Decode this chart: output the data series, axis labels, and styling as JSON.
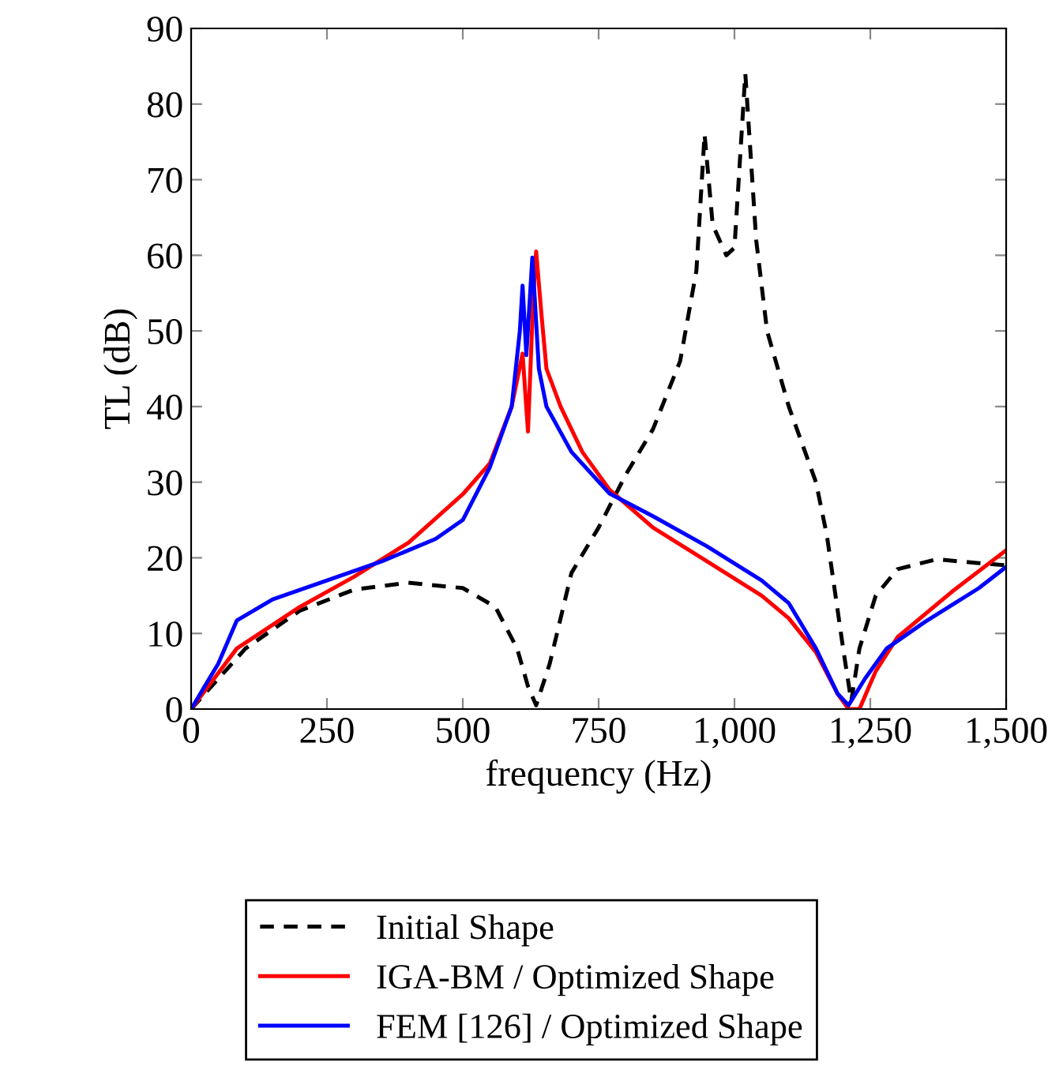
{
  "chart_data": {
    "type": "line",
    "xlabel": "frequency (Hz)",
    "ylabel": "TL (dB)",
    "xlim": [
      0,
      1500
    ],
    "ylim": [
      0,
      90
    ],
    "xticks": [
      0,
      250,
      500,
      750,
      {
        "value": 1000,
        "label": "1,000"
      },
      {
        "value": 1250,
        "label": "1,250"
      },
      {
        "value": 1500,
        "label": "1,500"
      }
    ],
    "yticks": [
      0,
      10,
      20,
      30,
      40,
      50,
      60,
      70,
      80,
      90
    ],
    "grid": false,
    "legend": "bottom",
    "marker": "none",
    "series": [
      {
        "name": "Initial Shape",
        "color": "#000000",
        "line_style": "dashed",
        "x": [
          0,
          100,
          200,
          300,
          400,
          500,
          560,
          600,
          620,
          635,
          660,
          700,
          750,
          800,
          850,
          900,
          930,
          945,
          960,
          985,
          1000,
          1020,
          1040,
          1060,
          1100,
          1150,
          1170,
          1200,
          1215,
          1230,
          1260,
          1300,
          1372,
          1450,
          1500
        ],
        "values": [
          0,
          8,
          13,
          15.8,
          16.7,
          16,
          13.5,
          8,
          3,
          0.5,
          6,
          18,
          24,
          31,
          37,
          46,
          58,
          76,
          64,
          60,
          61,
          84,
          62,
          50,
          40,
          30,
          23,
          8,
          1,
          8,
          15,
          18.5,
          19.8,
          19.3,
          19
        ]
      },
      {
        "name": "IGA-BM / Optimized Shape",
        "color": "#ff0000",
        "line_style": "solid",
        "x": [
          0,
          84,
          200,
          300,
          400,
          500,
          550,
          590,
          610,
          620,
          630,
          635,
          645,
          654,
          680,
          720,
          770,
          850,
          950,
          1050,
          1100,
          1150,
          1190,
          1210,
          1230,
          1260,
          1300,
          1400,
          1500
        ],
        "values": [
          0,
          8,
          13.5,
          17.5,
          22,
          28.4,
          32.5,
          40,
          47,
          36.7,
          55,
          60.5,
          52,
          45,
          40,
          34,
          29,
          24,
          19.5,
          15,
          12,
          7.5,
          2,
          0,
          0,
          5,
          9.5,
          15.5,
          21
        ]
      },
      {
        "name": "FEM [126] / Optimized Shape",
        "color": "#0000ff",
        "line_style": "solid",
        "x": [
          0,
          50,
          84,
          150,
          250,
          350,
          400,
          450,
          500,
          550,
          590,
          605,
          610,
          617,
          628,
          640,
          654,
          700,
          770,
          850,
          950,
          1050,
          1100,
          1150,
          1190,
          1210,
          1240,
          1280,
          1350,
          1450,
          1500
        ],
        "values": [
          0,
          6,
          11.7,
          14.5,
          17,
          19.5,
          21,
          22.5,
          25,
          32,
          40,
          50,
          56,
          46.8,
          59.7,
          45,
          40,
          34,
          28.5,
          25.5,
          21.5,
          17,
          14,
          8,
          2,
          0.5,
          4,
          8,
          11.5,
          16,
          18.8
        ]
      }
    ]
  }
}
